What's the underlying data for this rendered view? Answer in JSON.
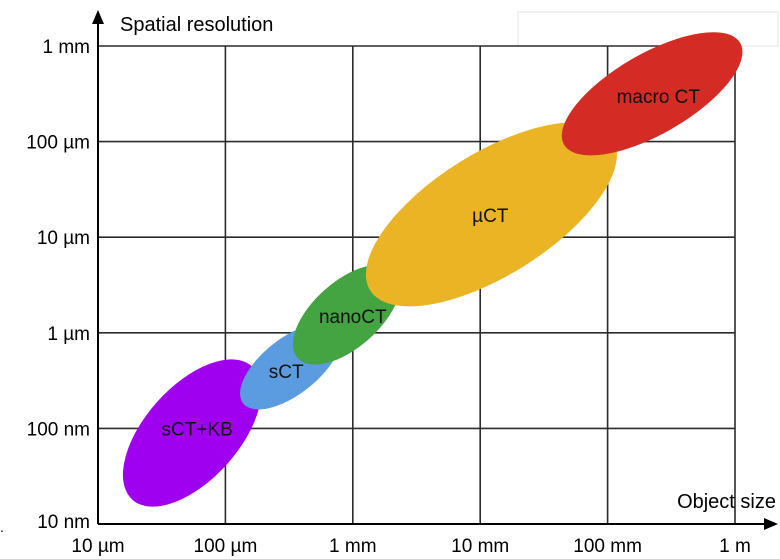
{
  "chart_data": {
    "type": "scatter",
    "title": "",
    "xlabel": "Object size",
    "ylabel": "Spatial resolution",
    "x_scale": "log",
    "y_scale": "log",
    "x_ticks": [
      "10 µm",
      "100 µm",
      "1 mm",
      "10 mm",
      "100 mm",
      "1 m"
    ],
    "y_ticks": [
      "1 mm",
      "100 µm",
      "10 µm",
      "1 µm",
      "100 nm",
      "10 nm"
    ],
    "x_tick_values_m": [
      1e-05,
      0.0001,
      0.001,
      0.01,
      0.1,
      1
    ],
    "y_tick_values_m": [
      0.001,
      0.0001,
      1e-05,
      1e-06,
      1e-07,
      1e-08
    ],
    "xlim_m": [
      1e-05,
      1
    ],
    "ylim_m": [
      1e-08,
      0.001
    ],
    "grid": true,
    "regions": [
      {
        "name": "sCT+KB",
        "color": "#a000f0",
        "object_size_range_m": [
          2e-05,
          0.00015
        ],
        "resolution_range_m": [
          2e-08,
          4e-07
        ],
        "center_m": {
          "x": 6e-05,
          "y": 1e-07
        }
      },
      {
        "name": "sCT",
        "color": "#5b9ce0",
        "object_size_range_m": [
          0.00015,
          0.0007
        ],
        "resolution_range_m": [
          2e-07,
          1e-06
        ],
        "center_m": {
          "x": 0.0003,
          "y": 4e-07
        }
      },
      {
        "name": "nanoCT",
        "color": "#44a441",
        "object_size_range_m": [
          0.0004,
          0.002
        ],
        "resolution_range_m": [
          6e-07,
          4e-06
        ],
        "center_m": {
          "x": 0.001,
          "y": 1.5e-06
        }
      },
      {
        "name": "µCT",
        "color": "#eab425",
        "object_size_range_m": [
          0.0015,
          0.1
        ],
        "resolution_range_m": [
          3e-06,
          0.0001
        ],
        "center_m": {
          "x": 0.012,
          "y": 1.7e-05
        }
      },
      {
        "name": "macro CT",
        "color": "#d42b24",
        "object_size_range_m": [
          0.05,
          1
        ],
        "resolution_range_m": [
          0.0001,
          0.001
        ],
        "center_m": {
          "x": 0.25,
          "y": 0.0003
        }
      }
    ]
  }
}
